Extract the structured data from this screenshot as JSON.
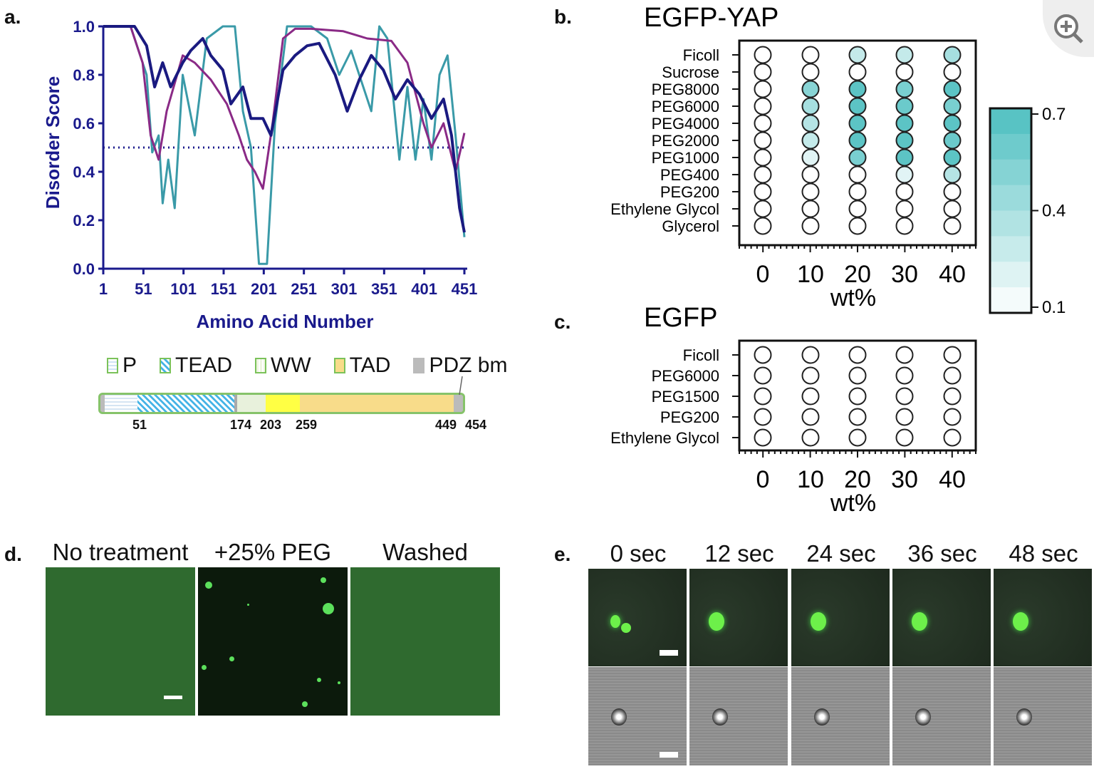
{
  "zoom_button": {
    "icon": "zoom-in-icon"
  },
  "panels": {
    "a": "a.",
    "b": "b.",
    "c": "c.",
    "d": "d.",
    "e": "e."
  },
  "chart_data": [
    {
      "type": "line",
      "panel": "a",
      "ylabel": "Disorder Score",
      "xlabel": "Amino Acid Number",
      "xlim": [
        1,
        454
      ],
      "ylim": [
        0,
        1.0
      ],
      "xticks": [
        "1",
        "51",
        "101",
        "151",
        "201",
        "251",
        "301",
        "351",
        "401",
        "451"
      ],
      "yticks": [
        "0.0",
        "0.2",
        "0.4",
        "0.6",
        "0.8",
        "1.0"
      ],
      "threshold": 0.5,
      "series": [
        {
          "color": "#1a1a80",
          "points": [
            [
              1,
              1.0
            ],
            [
              40,
              1.0
            ],
            [
              55,
              0.92
            ],
            [
              65,
              0.75
            ],
            [
              75,
              0.85
            ],
            [
              85,
              0.75
            ],
            [
              100,
              0.85
            ],
            [
              110,
              0.9
            ],
            [
              125,
              0.95
            ],
            [
              135,
              0.88
            ],
            [
              150,
              0.82
            ],
            [
              160,
              0.68
            ],
            [
              175,
              0.75
            ],
            [
              185,
              0.62
            ],
            [
              200,
              0.62
            ],
            [
              210,
              0.55
            ],
            [
              225,
              0.82
            ],
            [
              240,
              0.88
            ],
            [
              255,
              0.92
            ],
            [
              270,
              0.93
            ],
            [
              290,
              0.8
            ],
            [
              305,
              0.65
            ],
            [
              320,
              0.78
            ],
            [
              335,
              0.88
            ],
            [
              350,
              0.82
            ],
            [
              365,
              0.7
            ],
            [
              380,
              0.78
            ],
            [
              395,
              0.72
            ],
            [
              410,
              0.62
            ],
            [
              425,
              0.7
            ],
            [
              435,
              0.55
            ],
            [
              445,
              0.25
            ],
            [
              451,
              0.15
            ]
          ]
        },
        {
          "color": "#3a9aa8",
          "points": [
            [
              1,
              1.0
            ],
            [
              35,
              1.0
            ],
            [
              55,
              0.8
            ],
            [
              62,
              0.48
            ],
            [
              70,
              0.55
            ],
            [
              75,
              0.27
            ],
            [
              82,
              0.45
            ],
            [
              90,
              0.25
            ],
            [
              100,
              0.8
            ],
            [
              115,
              0.55
            ],
            [
              130,
              0.95
            ],
            [
              150,
              1.0
            ],
            [
              165,
              1.0
            ],
            [
              175,
              0.65
            ],
            [
              185,
              0.5
            ],
            [
              195,
              0.02
            ],
            [
              205,
              0.02
            ],
            [
              215,
              0.6
            ],
            [
              230,
              1.0
            ],
            [
              260,
              1.0
            ],
            [
              280,
              0.95
            ],
            [
              295,
              0.8
            ],
            [
              310,
              0.9
            ],
            [
              325,
              0.75
            ],
            [
              335,
              0.65
            ],
            [
              345,
              1.0
            ],
            [
              355,
              0.95
            ],
            [
              370,
              0.45
            ],
            [
              380,
              0.75
            ],
            [
              390,
              0.45
            ],
            [
              400,
              0.7
            ],
            [
              410,
              0.45
            ],
            [
              420,
              0.8
            ],
            [
              430,
              0.88
            ],
            [
              440,
              0.55
            ],
            [
              451,
              0.13
            ]
          ]
        },
        {
          "color": "#8a2a86",
          "points": [
            [
              1,
              1.0
            ],
            [
              35,
              1.0
            ],
            [
              50,
              0.85
            ],
            [
              60,
              0.55
            ],
            [
              70,
              0.45
            ],
            [
              80,
              0.65
            ],
            [
              100,
              0.88
            ],
            [
              115,
              0.85
            ],
            [
              135,
              0.78
            ],
            [
              155,
              0.68
            ],
            [
              170,
              0.55
            ],
            [
              180,
              0.45
            ],
            [
              190,
              0.4
            ],
            [
              200,
              0.33
            ],
            [
              212,
              0.6
            ],
            [
              225,
              0.95
            ],
            [
              240,
              0.99
            ],
            [
              260,
              0.99
            ],
            [
              300,
              0.98
            ],
            [
              330,
              0.95
            ],
            [
              360,
              0.94
            ],
            [
              380,
              0.85
            ],
            [
              400,
              0.6
            ],
            [
              410,
              0.5
            ],
            [
              425,
              0.6
            ],
            [
              440,
              0.4
            ],
            [
              451,
              0.56
            ]
          ]
        }
      ]
    },
    {
      "type": "heatmap",
      "panel": "b",
      "title": "EGFP-YAP",
      "xlabel": "wt%",
      "columns": [
        "0",
        "10",
        "20",
        "30",
        "40"
      ],
      "rows": [
        "Ficoll",
        "Sucrose",
        "PEG8000",
        "PEG6000",
        "PEG4000",
        "PEG2000",
        "PEG1000",
        "PEG400",
        "PEG200",
        "Ethylene Glycol",
        "Glycerol"
      ],
      "values": [
        [
          0.1,
          0.1,
          0.3,
          0.3,
          0.4
        ],
        [
          0.1,
          0.1,
          0.1,
          0.1,
          0.1
        ],
        [
          0.1,
          0.5,
          0.65,
          0.55,
          0.65
        ],
        [
          0.1,
          0.4,
          0.65,
          0.6,
          0.55
        ],
        [
          0.1,
          0.35,
          0.65,
          0.65,
          0.65
        ],
        [
          0.1,
          0.3,
          0.65,
          0.65,
          0.6
        ],
        [
          0.1,
          0.2,
          0.55,
          0.65,
          0.65
        ],
        [
          0.1,
          0.1,
          0.1,
          0.2,
          0.35
        ],
        [
          0.1,
          0.1,
          0.1,
          0.1,
          0.1
        ],
        [
          0.1,
          0.1,
          0.1,
          0.1,
          0.1
        ],
        [
          0.1,
          0.1,
          0.1,
          0.1,
          0.1
        ]
      ],
      "colorbar": {
        "ticks": [
          "0.7",
          "0.4",
          "0.1"
        ],
        "min": 0.1,
        "max": 0.7,
        "low_color": "#ffffff",
        "high_color": "#4dbfc0"
      }
    },
    {
      "type": "heatmap",
      "panel": "c",
      "title": "EGFP",
      "xlabel": "wt%",
      "columns": [
        "0",
        "10",
        "20",
        "30",
        "40"
      ],
      "rows": [
        "Ficoll",
        "PEG6000",
        "PEG1500",
        "PEG200",
        "Ethylene Glycol"
      ],
      "values": [
        [
          0.1,
          0.1,
          0.1,
          0.1,
          0.1
        ],
        [
          0.1,
          0.1,
          0.1,
          0.1,
          0.1
        ],
        [
          0.1,
          0.1,
          0.1,
          0.1,
          0.1
        ],
        [
          0.1,
          0.1,
          0.1,
          0.1,
          0.1
        ],
        [
          0.1,
          0.1,
          0.1,
          0.1,
          0.1
        ]
      ]
    }
  ],
  "domain_map": {
    "legend": [
      "P",
      "TEAD",
      "WW",
      "TAD",
      "PDZ bm"
    ],
    "positions": [
      "51",
      "174",
      "203",
      "259",
      "449",
      "454"
    ]
  },
  "panel_d": {
    "titles": [
      "No treatment",
      "+25% PEG",
      "Washed"
    ]
  },
  "panel_e": {
    "titles": [
      "0 sec",
      "12 sec",
      "24 sec",
      "36 sec",
      "48 sec"
    ]
  }
}
